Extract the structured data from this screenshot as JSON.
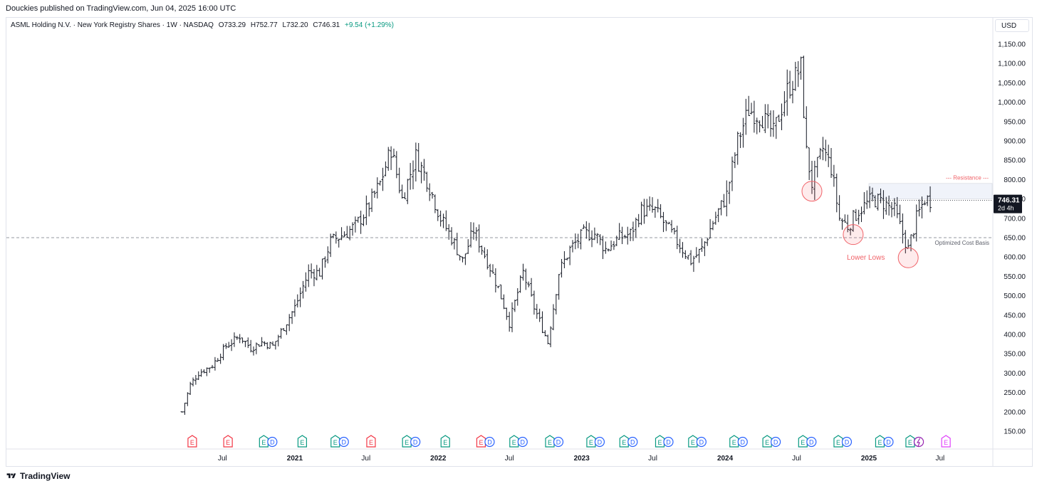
{
  "header": {
    "published_text": "Douckies published on TradingView.com, Jun 04, 2025 16:00 UTC"
  },
  "legend": {
    "symbol": "ASML Holding N.V. · New York Registry Shares · 1W · NASDAQ",
    "open": "O733.29",
    "high": "H752.77",
    "low": "L732.20",
    "close": "C746.31",
    "change": "+9.54 (+1.29%)"
  },
  "currency": "USD",
  "footer": {
    "brand": "TradingView"
  },
  "colors": {
    "bar": "#131722",
    "annotation_red": "#f06268",
    "circle_fill": "rgba(242,54,69,0.10)",
    "earnings_green": "#089981",
    "dividend_blue": "#2962ff",
    "earnings_red": "#f23645",
    "split_purple": "#9c27b0",
    "cost_basis_line": "#9598a1",
    "resistance_zone": "#f0f3fa"
  },
  "chart_data": {
    "type": "ohlc",
    "timeframe": "1W",
    "ylim": [
      130,
      1190
    ],
    "y_ticks": [
      "150.00",
      "200.00",
      "250.00",
      "300.00",
      "350.00",
      "400.00",
      "450.00",
      "500.00",
      "550.00",
      "600.00",
      "650.00",
      "700.00",
      "750.00",
      "800.00",
      "850.00",
      "900.00",
      "950.00",
      "1,000.00",
      "1,050.00",
      "1,100.00",
      "1,150.00"
    ],
    "x_ticks": [
      "Jul",
      "2021",
      "Jul",
      "2022",
      "Jul",
      "2023",
      "Jul",
      "2024",
      "Jul",
      "2025",
      "Jul"
    ],
    "last_price": {
      "value": "746.31",
      "countdown": "2d 4h"
    },
    "annotations": {
      "resistance_label": "--- Resistance ---",
      "cost_basis_label": "Optimized Cost Basis",
      "lower_lows_label": "Lower Lows",
      "cost_basis_level": 650,
      "resistance_zone": [
        750,
        790
      ]
    },
    "price_path": [
      [
        "2020-03-20",
        200
      ],
      [
        "2020-04-10",
        270
      ],
      [
        "2020-05-01",
        300
      ],
      [
        "2020-06-05",
        320
      ],
      [
        "2020-07-10",
        370
      ],
      [
        "2020-08-14",
        395
      ],
      [
        "2020-09-11",
        365
      ],
      [
        "2020-10-09",
        380
      ],
      [
        "2020-11-06",
        370
      ],
      [
        "2020-12-04",
        420
      ],
      [
        "2021-01-01",
        470
      ],
      [
        "2021-02-05",
        560
      ],
      [
        "2021-03-05",
        560
      ],
      [
        "2021-04-02",
        640
      ],
      [
        "2021-05-07",
        660
      ],
      [
        "2021-06-04",
        680
      ],
      [
        "2021-07-02",
        720
      ],
      [
        "2021-08-06",
        790
      ],
      [
        "2021-09-03",
        880
      ],
      [
        "2021-10-01",
        750
      ],
      [
        "2021-11-05",
        860
      ],
      [
        "2021-12-03",
        800
      ],
      [
        "2022-01-07",
        700
      ],
      [
        "2022-02-04",
        650
      ],
      [
        "2022-03-04",
        590
      ],
      [
        "2022-04-01",
        670
      ],
      [
        "2022-05-06",
        590
      ],
      [
        "2022-06-03",
        520
      ],
      [
        "2022-07-01",
        430
      ],
      [
        "2022-08-05",
        560
      ],
      [
        "2022-09-02",
        470
      ],
      [
        "2022-10-07",
        380
      ],
      [
        "2022-11-04",
        560
      ],
      [
        "2022-12-02",
        620
      ],
      [
        "2023-01-06",
        660
      ],
      [
        "2023-02-03",
        660
      ],
      [
        "2023-03-03",
        620
      ],
      [
        "2023-04-07",
        650
      ],
      [
        "2023-05-05",
        660
      ],
      [
        "2023-06-02",
        720
      ],
      [
        "2023-07-07",
        720
      ],
      [
        "2023-08-04",
        680
      ],
      [
        "2023-09-01",
        640
      ],
      [
        "2023-10-06",
        590
      ],
      [
        "2023-11-03",
        620
      ],
      [
        "2023-12-01",
        690
      ],
      [
        "2024-01-05",
        760
      ],
      [
        "2024-02-02",
        900
      ],
      [
        "2024-03-01",
        980
      ],
      [
        "2024-04-05",
        960
      ],
      [
        "2024-05-03",
        920
      ],
      [
        "2024-06-07",
        1030
      ],
      [
        "2024-07-12",
        1090
      ],
      [
        "2024-07-26",
        870
      ],
      [
        "2024-08-09",
        790
      ],
      [
        "2024-09-06",
        880
      ],
      [
        "2024-09-27",
        830
      ],
      [
        "2024-10-18",
        700
      ],
      [
        "2024-11-08",
        680
      ],
      [
        "2024-12-06",
        720
      ],
      [
        "2025-01-10",
        750
      ],
      [
        "2025-02-07",
        740
      ],
      [
        "2025-03-07",
        720
      ],
      [
        "2025-04-11",
        620
      ],
      [
        "2025-05-02",
        700
      ],
      [
        "2025-05-23",
        750
      ],
      [
        "2025-06-06",
        746
      ]
    ],
    "events": [
      {
        "date": "2020-04-15",
        "items": [
          "E"
        ],
        "kind": "red"
      },
      {
        "date": "2020-07-15",
        "items": [
          "E"
        ],
        "kind": "red"
      },
      {
        "date": "2020-10-14",
        "items": [
          "E",
          "D"
        ],
        "kind": "green"
      },
      {
        "date": "2021-01-20",
        "items": [
          "E"
        ],
        "kind": "green"
      },
      {
        "date": "2021-04-14",
        "items": [
          "E",
          "D"
        ],
        "kind": "green"
      },
      {
        "date": "2021-07-14",
        "items": [
          "E"
        ],
        "kind": "red"
      },
      {
        "date": "2021-10-13",
        "items": [
          "E",
          "D"
        ],
        "kind": "green"
      },
      {
        "date": "2022-01-19",
        "items": [
          "E"
        ],
        "kind": "green"
      },
      {
        "date": "2022-04-20",
        "items": [
          "E",
          "D"
        ],
        "kind": "red"
      },
      {
        "date": "2022-07-13",
        "items": [
          "E",
          "D"
        ],
        "kind": "green"
      },
      {
        "date": "2022-10-12",
        "items": [
          "E",
          "D"
        ],
        "kind": "green"
      },
      {
        "date": "2023-01-25",
        "items": [
          "E",
          "D"
        ],
        "kind": "green"
      },
      {
        "date": "2023-04-19",
        "items": [
          "E",
          "D"
        ],
        "kind": "green"
      },
      {
        "date": "2023-07-19",
        "items": [
          "E",
          "D"
        ],
        "kind": "green"
      },
      {
        "date": "2023-10-11",
        "items": [
          "E",
          "D"
        ],
        "kind": "green"
      },
      {
        "date": "2024-01-24",
        "items": [
          "E",
          "D"
        ],
        "kind": "green"
      },
      {
        "date": "2024-04-17",
        "items": [
          "E",
          "D"
        ],
        "kind": "green"
      },
      {
        "date": "2024-07-17",
        "items": [
          "E",
          "D"
        ],
        "kind": "green"
      },
      {
        "date": "2024-10-15",
        "items": [
          "E",
          "D"
        ],
        "kind": "green"
      },
      {
        "date": "2025-01-29",
        "items": [
          "E",
          "D"
        ],
        "kind": "green"
      },
      {
        "date": "2025-04-16",
        "items": [
          "E",
          "D"
        ],
        "kind": "green"
      },
      {
        "date": "2025-05-08",
        "items": [
          "S"
        ],
        "kind": "split"
      },
      {
        "date": "2025-07-16",
        "items": [
          "E"
        ],
        "kind": "future"
      }
    ]
  }
}
